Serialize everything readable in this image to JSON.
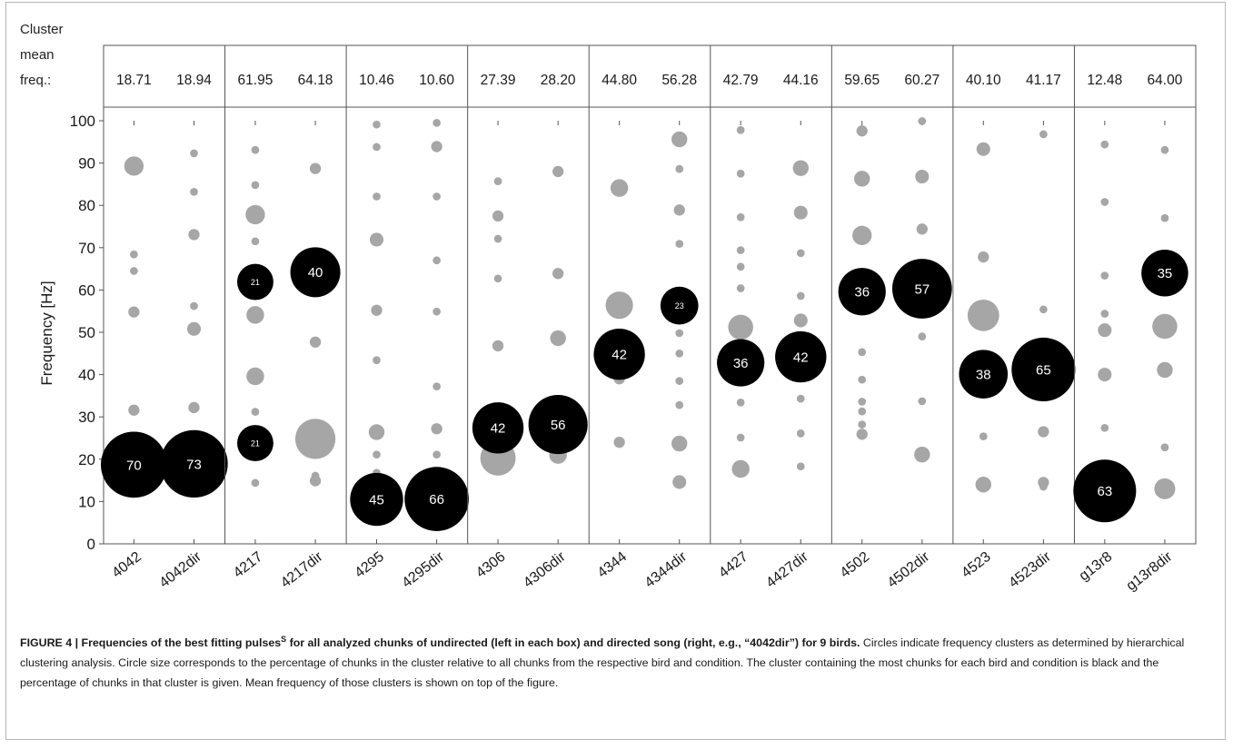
{
  "chart_data": {
    "type": "scatter",
    "subtype": "bubble",
    "ylabel": "Frequency [Hz]",
    "ylim": [
      0,
      100
    ],
    "yticks": [
      "0",
      "10",
      "20",
      "30",
      "40",
      "50",
      "60",
      "70",
      "80",
      "90",
      "100"
    ],
    "mean_freq_header": {
      "line1": "Cluster",
      "line2": "mean",
      "line3": "freq.:"
    },
    "major_color": "#000000",
    "minor_color": "#a6a6a6",
    "birds": [
      {
        "columns": [
          {
            "label": "4042",
            "mean_freq": "18.71",
            "clusters": [
              {
                "f": 18.7,
                "pct": 70,
                "major": true,
                "show": "70"
              },
              {
                "f": 89.3,
                "pct": 6
              },
              {
                "f": 68.4,
                "pct": 1
              },
              {
                "f": 64.5,
                "pct": 1
              },
              {
                "f": 54.8,
                "pct": 2
              },
              {
                "f": 31.6,
                "pct": 2
              }
            ]
          },
          {
            "label": "4042dir",
            "mean_freq": "18.94",
            "clusters": [
              {
                "f": 18.9,
                "pct": 73,
                "major": true,
                "show": "73"
              },
              {
                "f": 92.3,
                "pct": 1
              },
              {
                "f": 83.2,
                "pct": 1
              },
              {
                "f": 73.1,
                "pct": 2
              },
              {
                "f": 56.2,
                "pct": 1
              },
              {
                "f": 50.8,
                "pct": 3
              },
              {
                "f": 32.2,
                "pct": 2
              }
            ]
          }
        ]
      },
      {
        "columns": [
          {
            "label": "4217",
            "mean_freq": "61.95",
            "clusters": [
              {
                "f": 61.9,
                "pct": 21,
                "major": true,
                "show": "21"
              },
              {
                "f": 23.8,
                "pct": 21,
                "major": true,
                "show": "21"
              },
              {
                "f": 93.1,
                "pct": 1
              },
              {
                "f": 84.8,
                "pct": 1
              },
              {
                "f": 77.8,
                "pct": 6
              },
              {
                "f": 71.5,
                "pct": 1
              },
              {
                "f": 54.1,
                "pct": 5
              },
              {
                "f": 39.6,
                "pct": 5
              },
              {
                "f": 31.2,
                "pct": 1
              },
              {
                "f": 14.4,
                "pct": 1
              }
            ]
          },
          {
            "label": "4217dir",
            "mean_freq": "64.18",
            "clusters": [
              {
                "f": 64.2,
                "pct": 40,
                "major": true,
                "show": "40"
              },
              {
                "f": 88.7,
                "pct": 2
              },
              {
                "f": 47.7,
                "pct": 2
              },
              {
                "f": 24.8,
                "pct": 26
              },
              {
                "f": 16.1,
                "pct": 1
              },
              {
                "f": 14.9,
                "pct": 2
              }
            ]
          }
        ]
      },
      {
        "columns": [
          {
            "label": "4295",
            "mean_freq": "10.46",
            "clusters": [
              {
                "f": 10.5,
                "pct": 45,
                "major": true,
                "show": "45"
              },
              {
                "f": 99.1,
                "pct": 1
              },
              {
                "f": 93.8,
                "pct": 1
              },
              {
                "f": 82.1,
                "pct": 1
              },
              {
                "f": 71.9,
                "pct": 3
              },
              {
                "f": 55.2,
                "pct": 2
              },
              {
                "f": 43.4,
                "pct": 1
              },
              {
                "f": 26.4,
                "pct": 4
              },
              {
                "f": 21.1,
                "pct": 1
              },
              {
                "f": 16.8,
                "pct": 1
              }
            ]
          },
          {
            "label": "4295dir",
            "mean_freq": "10.60",
            "clusters": [
              {
                "f": 10.6,
                "pct": 66,
                "major": true,
                "show": "66"
              },
              {
                "f": 99.5,
                "pct": 1
              },
              {
                "f": 93.9,
                "pct": 2
              },
              {
                "f": 82.1,
                "pct": 1
              },
              {
                "f": 67.0,
                "pct": 1
              },
              {
                "f": 54.9,
                "pct": 1
              },
              {
                "f": 37.2,
                "pct": 1
              },
              {
                "f": 27.2,
                "pct": 2
              },
              {
                "f": 21.1,
                "pct": 1
              }
            ]
          }
        ]
      },
      {
        "columns": [
          {
            "label": "4306",
            "mean_freq": "27.39",
            "clusters": [
              {
                "f": 27.4,
                "pct": 42,
                "major": true,
                "show": "42"
              },
              {
                "f": 85.7,
                "pct": 1
              },
              {
                "f": 77.5,
                "pct": 2
              },
              {
                "f": 72.1,
                "pct": 1
              },
              {
                "f": 62.7,
                "pct": 1
              },
              {
                "f": 46.8,
                "pct": 2
              },
              {
                "f": 20.3,
                "pct": 20
              }
            ]
          },
          {
            "label": "4306dir",
            "mean_freq": "28.20",
            "clusters": [
              {
                "f": 28.2,
                "pct": 56,
                "major": true,
                "show": "56"
              },
              {
                "f": 88.0,
                "pct": 2
              },
              {
                "f": 63.9,
                "pct": 2
              },
              {
                "f": 48.6,
                "pct": 4
              },
              {
                "f": 21.0,
                "pct": 5
              }
            ]
          }
        ]
      },
      {
        "columns": [
          {
            "label": "4344",
            "mean_freq": "44.80",
            "clusters": [
              {
                "f": 44.8,
                "pct": 42,
                "major": true,
                "show": "42"
              },
              {
                "f": 84.1,
                "pct": 5
              },
              {
                "f": 56.4,
                "pct": 12
              },
              {
                "f": 39.0,
                "pct": 2
              },
              {
                "f": 24.0,
                "pct": 2
              }
            ]
          },
          {
            "label": "4344dir",
            "mean_freq": "56.28",
            "clusters": [
              {
                "f": 56.3,
                "pct": 23,
                "major": true,
                "show": "23"
              },
              {
                "f": 95.6,
                "pct": 4
              },
              {
                "f": 88.6,
                "pct": 1
              },
              {
                "f": 78.9,
                "pct": 2
              },
              {
                "f": 70.9,
                "pct": 1
              },
              {
                "f": 49.8,
                "pct": 1
              },
              {
                "f": 45.0,
                "pct": 1
              },
              {
                "f": 38.5,
                "pct": 1
              },
              {
                "f": 32.8,
                "pct": 1
              },
              {
                "f": 23.7,
                "pct": 4
              },
              {
                "f": 14.6,
                "pct": 3
              }
            ]
          }
        ]
      },
      {
        "columns": [
          {
            "label": "4427",
            "mean_freq": "42.79",
            "clusters": [
              {
                "f": 42.8,
                "pct": 36,
                "major": true,
                "show": "36"
              },
              {
                "f": 97.8,
                "pct": 1
              },
              {
                "f": 87.5,
                "pct": 1
              },
              {
                "f": 77.2,
                "pct": 1
              },
              {
                "f": 69.4,
                "pct": 1
              },
              {
                "f": 65.5,
                "pct": 1
              },
              {
                "f": 60.4,
                "pct": 1
              },
              {
                "f": 51.2,
                "pct": 10
              },
              {
                "f": 33.4,
                "pct": 1
              },
              {
                "f": 25.1,
                "pct": 1
              },
              {
                "f": 17.7,
                "pct": 5
              }
            ]
          },
          {
            "label": "4427dir",
            "mean_freq": "44.16",
            "clusters": [
              {
                "f": 44.2,
                "pct": 42,
                "major": true,
                "show": "42"
              },
              {
                "f": 88.8,
                "pct": 4
              },
              {
                "f": 78.3,
                "pct": 3
              },
              {
                "f": 68.7,
                "pct": 1
              },
              {
                "f": 58.6,
                "pct": 1
              },
              {
                "f": 52.8,
                "pct": 3
              },
              {
                "f": 34.3,
                "pct": 1
              },
              {
                "f": 26.1,
                "pct": 1
              },
              {
                "f": 18.3,
                "pct": 1
              }
            ]
          }
        ]
      },
      {
        "columns": [
          {
            "label": "4502",
            "mean_freq": "59.65",
            "clusters": [
              {
                "f": 59.6,
                "pct": 36,
                "major": true,
                "show": "36"
              },
              {
                "f": 97.6,
                "pct": 2
              },
              {
                "f": 86.3,
                "pct": 4
              },
              {
                "f": 72.9,
                "pct": 6
              },
              {
                "f": 45.3,
                "pct": 1
              },
              {
                "f": 38.8,
                "pct": 1
              },
              {
                "f": 33.6,
                "pct": 1
              },
              {
                "f": 31.3,
                "pct": 1
              },
              {
                "f": 28.2,
                "pct": 1
              },
              {
                "f": 25.9,
                "pct": 2
              }
            ]
          },
          {
            "label": "4502dir",
            "mean_freq": "60.27",
            "clusters": [
              {
                "f": 60.3,
                "pct": 57,
                "major": true,
                "show": "57"
              },
              {
                "f": 99.9,
                "pct": 1
              },
              {
                "f": 86.8,
                "pct": 3
              },
              {
                "f": 74.4,
                "pct": 2
              },
              {
                "f": 49.0,
                "pct": 1
              },
              {
                "f": 33.7,
                "pct": 1
              },
              {
                "f": 21.1,
                "pct": 4
              }
            ]
          }
        ]
      },
      {
        "columns": [
          {
            "label": "4523",
            "mean_freq": "40.10",
            "clusters": [
              {
                "f": 40.1,
                "pct": 38,
                "major": true,
                "show": "38"
              },
              {
                "f": 93.3,
                "pct": 3
              },
              {
                "f": 67.8,
                "pct": 2
              },
              {
                "f": 54.0,
                "pct": 16
              },
              {
                "f": 25.4,
                "pct": 1
              },
              {
                "f": 14.0,
                "pct": 4
              }
            ]
          },
          {
            "label": "4523dir",
            "mean_freq": "41.17",
            "clusters": [
              {
                "f": 41.2,
                "pct": 65,
                "major": true,
                "show": "65"
              },
              {
                "f": 96.8,
                "pct": 1
              },
              {
                "f": 55.4,
                "pct": 1
              },
              {
                "f": 26.5,
                "pct": 2
              },
              {
                "f": 14.5,
                "pct": 2
              },
              {
                "f": 13.5,
                "pct": 1
              }
            ]
          }
        ]
      },
      {
        "columns": [
          {
            "label": "g13r8",
            "mean_freq": "12.48",
            "clusters": [
              {
                "f": 12.5,
                "pct": 63,
                "major": true,
                "show": "63"
              },
              {
                "f": 94.4,
                "pct": 1
              },
              {
                "f": 80.8,
                "pct": 1
              },
              {
                "f": 63.4,
                "pct": 1
              },
              {
                "f": 54.4,
                "pct": 1
              },
              {
                "f": 50.5,
                "pct": 3
              },
              {
                "f": 40.0,
                "pct": 3
              },
              {
                "f": 27.4,
                "pct": 1
              }
            ]
          },
          {
            "label": "g13r8dir",
            "mean_freq": "64.00",
            "clusters": [
              {
                "f": 64.0,
                "pct": 35,
                "major": true,
                "show": "35"
              },
              {
                "f": 93.1,
                "pct": 1
              },
              {
                "f": 77.0,
                "pct": 1
              },
              {
                "f": 51.4,
                "pct": 10
              },
              {
                "f": 41.1,
                "pct": 4
              },
              {
                "f": 22.8,
                "pct": 1
              },
              {
                "f": 13.0,
                "pct": 7
              }
            ]
          }
        ]
      }
    ]
  },
  "caption": {
    "lead": "FIGURE 4 | Frequencies of the best fitting pulses",
    "sup": "S",
    "lead_rest": " for all analyzed chunks of undirected (left in each box) and directed song (right, e.g., “4042dir”) for 9 birds.",
    "body": " Circles indicate frequency clusters as determined by hierarchical clustering analysis. Circle size corresponds to the percentage of chunks in the cluster relative to all chunks from the respective bird and condition. The cluster containing the most chunks for each bird and condition is black and the percentage of chunks in that cluster is given. Mean frequency of those clusters is shown on top of the figure."
  }
}
